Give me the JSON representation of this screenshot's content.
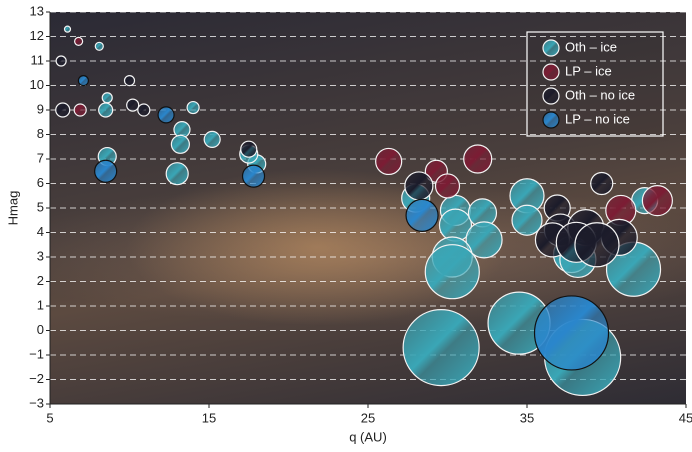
{
  "chart_data": {
    "type": "scatter",
    "x_label": "q (AU)",
    "y_label": "Hmag",
    "xlim": [
      5,
      45
    ],
    "xticks": [
      5,
      15,
      25,
      35,
      45
    ],
    "ylim": [
      -3,
      13
    ],
    "yticks": [
      {
        "value": -3,
        "label": "−3"
      },
      {
        "value": -2,
        "label": "−2"
      },
      {
        "value": -1,
        "label": "−1"
      },
      0,
      1,
      2,
      3,
      4,
      5,
      6,
      7,
      8,
      9,
      10,
      11,
      12,
      13
    ],
    "grid": true,
    "legend": "upper right",
    "series": [
      {
        "name": "Oth – ice",
        "color": "#3aa6b6",
        "x": [
          6.1,
          8.1,
          8.6,
          8.5,
          8.6,
          14.0,
          13.3,
          13.2,
          13.0,
          15.2,
          18.0,
          17.5,
          28.0,
          30.5,
          30.5,
          32.2,
          32.3,
          30.3,
          30.3,
          35.0,
          35.0,
          37.8,
          38.2,
          41.7,
          29.6,
          34.5,
          38.5,
          42.4
        ],
        "values": [
          12.3,
          11.6,
          9.5,
          9.0,
          7.1,
          9.1,
          8.2,
          7.6,
          6.4,
          7.8,
          6.8,
          7.2,
          5.4,
          4.9,
          4.3,
          4.8,
          3.7,
          3.0,
          2.4,
          5.5,
          4.5,
          3.1,
          2.9,
          2.5,
          -0.7,
          0.3,
          -1.1,
          5.3
        ],
        "sizes": [
          3,
          4,
          5,
          7,
          9,
          6,
          8,
          9,
          11,
          8,
          9,
          9,
          14,
          15,
          16,
          14,
          18,
          20,
          27,
          17,
          15,
          18,
          18,
          27,
          38,
          31,
          38,
          13
        ]
      },
      {
        "name": "LP – ice",
        "color": "#7c1c34",
        "x": [
          6.8,
          6.9,
          26.3,
          29.3,
          30.0,
          31.9,
          40.9,
          43.2
        ],
        "values": [
          11.8,
          9.0,
          6.9,
          6.5,
          5.9,
          7.0,
          4.9,
          5.3
        ],
        "sizes": [
          4,
          6,
          13,
          11,
          12,
          14,
          15,
          15
        ]
      },
      {
        "name": "Oth – no ice",
        "color": "#1b1b2a",
        "x": [
          5.7,
          10.0,
          10.2,
          10.9,
          5.8,
          17.5,
          28.2,
          36.9,
          39.7,
          37.1,
          36.6,
          38.7,
          38.1,
          40.8,
          39.4
        ],
        "values": [
          11.0,
          10.2,
          9.2,
          9.0,
          9.0,
          7.4,
          5.9,
          5.0,
          6.0,
          4.1,
          3.7,
          4.2,
          3.6,
          3.8,
          3.5
        ],
        "sizes": [
          5,
          5,
          6,
          6,
          7,
          8,
          14,
          13,
          11,
          16,
          17,
          18,
          20,
          18,
          22
        ]
      },
      {
        "name": "LP – no ice",
        "color": "#2a86cc",
        "x": [
          7.1,
          12.3,
          8.5,
          17.8,
          28.4,
          37.8
        ],
        "values": [
          10.2,
          8.8,
          6.5,
          6.3,
          4.7,
          -0.1
        ],
        "sizes": [
          5,
          8,
          11,
          11,
          16,
          37
        ]
      }
    ]
  }
}
